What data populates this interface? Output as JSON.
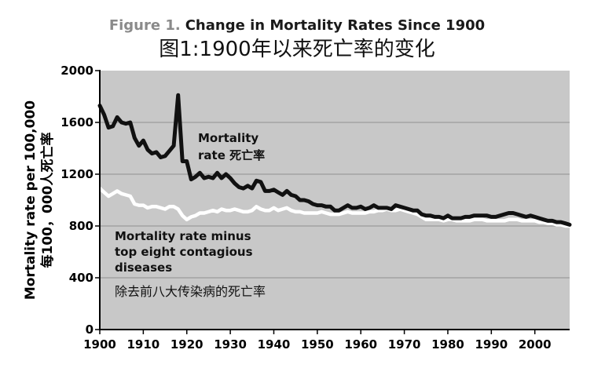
{
  "chart_data": {
    "type": "line",
    "title_prefix": "Figure 1.",
    "title": "Change in Mortality Rates Since 1900",
    "subtitle": "图1:1900年以来死亡率的变化",
    "ylabel": "Mortality rate per 100,000",
    "ylabel_cn": "每100，000人死亡率",
    "xlim": [
      1900,
      2008
    ],
    "ylim": [
      0,
      2000
    ],
    "x_ticks": [
      1900,
      1910,
      1920,
      1930,
      1940,
      1950,
      1960,
      1970,
      1980,
      1990,
      2000
    ],
    "x_tick_labels": [
      "1900",
      "1910",
      "1920",
      "1930",
      "1940",
      "1950",
      "1960",
      "1970",
      "1980",
      "1990",
      "2000"
    ],
    "y_ticks": [
      0,
      400,
      800,
      1200,
      1600,
      2000
    ],
    "y_tick_labels": [
      "0",
      "400",
      "800",
      "1200",
      "1600",
      "2000"
    ],
    "grid": true,
    "colors": {
      "plot_bg": "#c8c8c8",
      "title_prefix": "#8a8a8a",
      "series_total": "#111111",
      "series_minus": "#ffffff"
    },
    "series": [
      {
        "name": "Mortality rate 死亡率",
        "label_lines": [
          "Mortality",
          "rate 死亡率"
        ],
        "x": [
          1900,
          1901,
          1902,
          1903,
          1904,
          1905,
          1906,
          1907,
          1908,
          1909,
          1910,
          1911,
          1912,
          1913,
          1914,
          1915,
          1916,
          1917,
          1918,
          1919,
          1920,
          1921,
          1922,
          1923,
          1924,
          1925,
          1926,
          1927,
          1928,
          1929,
          1930,
          1931,
          1932,
          1933,
          1934,
          1935,
          1936,
          1937,
          1938,
          1939,
          1940,
          1941,
          1942,
          1943,
          1944,
          1945,
          1946,
          1947,
          1948,
          1949,
          1950,
          1951,
          1952,
          1953,
          1954,
          1955,
          1956,
          1957,
          1958,
          1959,
          1960,
          1961,
          1962,
          1963,
          1964,
          1965,
          1966,
          1967,
          1968,
          1969,
          1970,
          1971,
          1972,
          1973,
          1974,
          1975,
          1976,
          1977,
          1978,
          1979,
          1980,
          1981,
          1982,
          1983,
          1984,
          1985,
          1986,
          1987,
          1988,
          1989,
          1990,
          1991,
          1992,
          1993,
          1994,
          1995,
          1996,
          1997,
          1998,
          1999,
          2000,
          2001,
          2002,
          2003,
          2004,
          2005,
          2006,
          2007,
          2008
        ],
        "values": [
          1730,
          1660,
          1560,
          1570,
          1640,
          1600,
          1590,
          1600,
          1480,
          1420,
          1460,
          1390,
          1360,
          1370,
          1330,
          1340,
          1380,
          1420,
          1810,
          1300,
          1300,
          1160,
          1180,
          1210,
          1170,
          1180,
          1170,
          1210,
          1170,
          1200,
          1170,
          1130,
          1100,
          1090,
          1110,
          1090,
          1150,
          1140,
          1070,
          1070,
          1080,
          1060,
          1040,
          1070,
          1040,
          1030,
          1000,
          1000,
          990,
          970,
          960,
          960,
          950,
          950,
          920,
          920,
          940,
          960,
          940,
          940,
          950,
          930,
          940,
          960,
          940,
          940,
          940,
          930,
          960,
          950,
          940,
          930,
          920,
          920,
          890,
          880,
          880,
          870,
          870,
          860,
          880,
          860,
          860,
          860,
          870,
          870,
          880,
          880,
          880,
          880,
          870,
          870,
          880,
          890,
          900,
          900,
          890,
          880,
          870,
          880,
          870,
          860,
          850,
          840,
          840,
          830,
          830,
          820,
          810
        ]
      },
      {
        "name": "Mortality rate minus top eight contagious diseases 除去前八大传染病的死亡率",
        "label_lines": [
          "Mortality rate minus",
          "top eight contagious",
          "diseases",
          "除去前八大传染病的死亡率"
        ],
        "x": [
          1900,
          1901,
          1902,
          1903,
          1904,
          1905,
          1906,
          1907,
          1908,
          1909,
          1910,
          1911,
          1912,
          1913,
          1914,
          1915,
          1916,
          1917,
          1918,
          1919,
          1920,
          1921,
          1922,
          1923,
          1924,
          1925,
          1926,
          1927,
          1928,
          1929,
          1930,
          1931,
          1932,
          1933,
          1934,
          1935,
          1936,
          1937,
          1938,
          1939,
          1940,
          1941,
          1942,
          1943,
          1944,
          1945,
          1946,
          1947,
          1948,
          1949,
          1950,
          1951,
          1952,
          1953,
          1954,
          1955,
          1956,
          1957,
          1958,
          1959,
          1960,
          1961,
          1962,
          1963,
          1964,
          1965,
          1966,
          1967,
          1968,
          1969,
          1970,
          1971,
          1972,
          1973,
          1974,
          1975,
          1976,
          1977,
          1978,
          1979,
          1980,
          1981,
          1982,
          1983,
          1984,
          1985,
          1986,
          1987,
          1988,
          1989,
          1990,
          1991,
          1992,
          1993,
          1994,
          1995,
          1996,
          1997,
          1998,
          1999,
          2000,
          2001,
          2002,
          2003,
          2004,
          2005,
          2006,
          2007,
          2008
        ],
        "values": [
          1090,
          1060,
          1030,
          1050,
          1070,
          1050,
          1040,
          1030,
          970,
          960,
          960,
          940,
          950,
          950,
          940,
          930,
          950,
          950,
          930,
          880,
          850,
          870,
          880,
          900,
          900,
          910,
          920,
          910,
          930,
          920,
          920,
          930,
          920,
          910,
          910,
          920,
          950,
          930,
          920,
          920,
          940,
          920,
          930,
          940,
          920,
          910,
          910,
          900,
          900,
          900,
          900,
          910,
          900,
          890,
          890,
          890,
          900,
          910,
          900,
          900,
          900,
          900,
          910,
          910,
          920,
          920,
          930,
          920,
          920,
          930,
          920,
          910,
          900,
          890,
          870,
          850,
          850,
          850,
          850,
          840,
          850,
          850,
          840,
          840,
          840,
          840,
          850,
          850,
          850,
          840,
          840,
          840,
          840,
          840,
          850,
          850,
          850,
          840,
          840,
          840,
          840,
          830,
          830,
          820,
          820,
          810,
          810,
          800,
          800
        ]
      }
    ]
  }
}
